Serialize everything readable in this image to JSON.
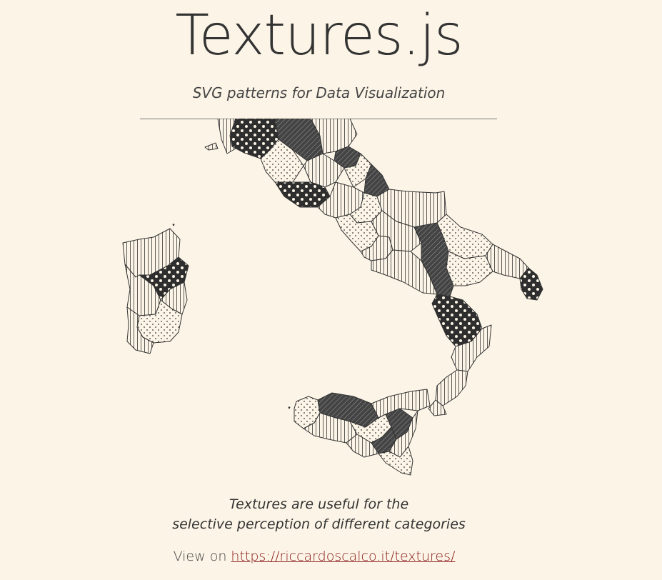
{
  "header": {
    "title": "Textures.js",
    "subtitle": "SVG patterns for Data Visualization"
  },
  "map": {
    "pattern_fills": [
      "url(#vlines)",
      "url(#dots-light)",
      "url(#diag-dark)",
      "url(#dots-dark)"
    ]
  },
  "footer": {
    "caption_line1": "Textures are useful for the",
    "caption_line2": "selective perception of different categories",
    "view_on_label": "View on",
    "link_text": "https://riccardoscalco.it/textures/",
    "link_href": "https://riccardoscalco.it/textures/"
  },
  "colors": {
    "background": "#fcf5e7",
    "ink": "#333333",
    "link": "#8b1a1a"
  }
}
